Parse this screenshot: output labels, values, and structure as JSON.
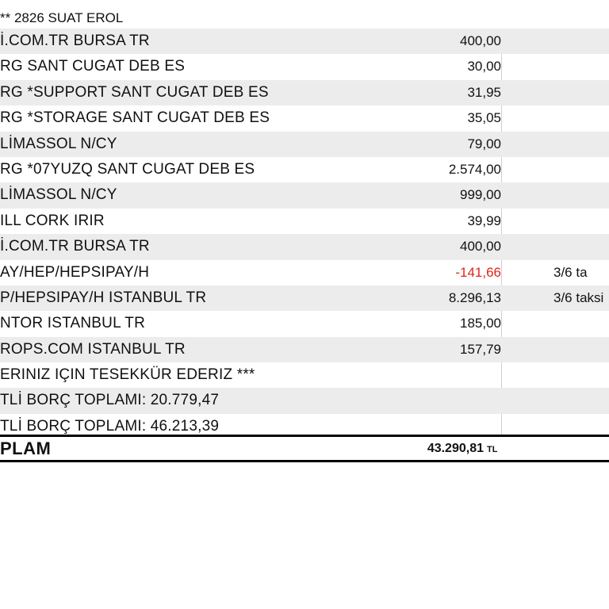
{
  "header": {
    "title": "** 2826 SUAT EROL"
  },
  "rows": [
    {
      "desc": "İ.COM.TR BURSA TR",
      "amount": "400,00",
      "note": ""
    },
    {
      "desc": "RG SANT CUGAT DEB ES",
      "amount": "30,00",
      "note": ""
    },
    {
      "desc": "RG *SUPPORT SANT CUGAT DEB ES",
      "amount": "31,95",
      "note": ""
    },
    {
      "desc": "RG *STORAGE SANT CUGAT DEB ES",
      "amount": "35,05",
      "note": ""
    },
    {
      "desc": "LİMASSOL N/CY",
      "amount": "79,00",
      "note": ""
    },
    {
      "desc": "RG *07YUZQ SANT CUGAT DEB ES",
      "amount": "2.574,00",
      "note": ""
    },
    {
      "desc": "LİMASSOL N/CY",
      "amount": "999,00",
      "note": ""
    },
    {
      "desc": "ILL CORK IRIR",
      "amount": "39,99",
      "note": ""
    },
    {
      "desc": "İ.COM.TR BURSA TR",
      "amount": "400,00",
      "note": ""
    },
    {
      "desc": "AY/HEP/HEPSIPAY/H",
      "amount": "-141,66",
      "note": "3/6 ta",
      "negative": true
    },
    {
      "desc": "P/HEPSIPAY/H ISTANBUL TR",
      "amount": "8.296,13",
      "note": "3/6 taksi"
    },
    {
      "desc": "NTOR ISTANBUL TR",
      "amount": "185,00",
      "note": ""
    },
    {
      "desc": "ROPS.COM ISTANBUL TR",
      "amount": "157,79",
      "note": ""
    },
    {
      "desc": "ERINIZ IÇIN TESEKKÜR EDERIZ ***",
      "amount": "",
      "note": ""
    },
    {
      "desc": "TLİ BORÇ TOPLAMI: 20.779,47",
      "amount": "",
      "note": ""
    },
    {
      "desc": "TLİ BORÇ TOPLAMI: 46.213,39",
      "amount": "",
      "note": ""
    }
  ],
  "total": {
    "label": "PLAM",
    "value": "43.290,81",
    "currency": "TL"
  },
  "colors": {
    "negative": "#e2231a",
    "shade": "#ececec"
  }
}
